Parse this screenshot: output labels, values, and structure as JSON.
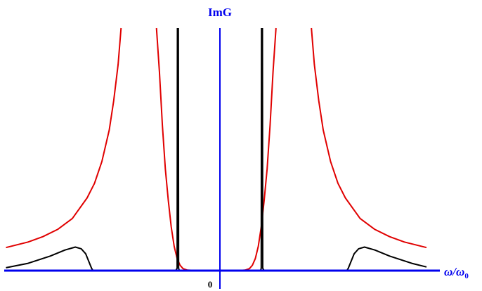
{
  "chart_data": {
    "type": "line",
    "title": "",
    "ylabel": "ImG",
    "xlabel_main": "ω/ω",
    "xlabel_sub": "0",
    "origin_label": "0",
    "xlim": [
      -1.5,
      1.45
    ],
    "ylim": [
      0,
      1.0
    ],
    "grid": false,
    "legend": "none",
    "colors": {
      "axis": "#0000ee",
      "red_curve": "#e00000",
      "black_curve": "#000000"
    },
    "series": [
      {
        "color": "#e00000",
        "points": [
          [
            -1.45,
            0.095
          ],
          [
            -1.3,
            0.118
          ],
          [
            -1.2,
            0.14
          ],
          [
            -1.1,
            0.17
          ],
          [
            -1.0,
            0.215
          ],
          [
            -0.9,
            0.3
          ],
          [
            -0.85,
            0.36
          ],
          [
            -0.8,
            0.45
          ],
          [
            -0.75,
            0.58
          ],
          [
            -0.72,
            0.7
          ],
          [
            -0.69,
            0.85
          ],
          [
            -0.67,
            1.0
          ],
          null,
          [
            -0.43,
            1.0
          ],
          [
            -0.41,
            0.82
          ],
          [
            -0.39,
            0.6
          ],
          [
            -0.37,
            0.42
          ],
          [
            -0.35,
            0.29
          ],
          [
            -0.33,
            0.18
          ],
          [
            -0.31,
            0.1
          ],
          [
            -0.29,
            0.05
          ],
          [
            -0.27,
            0.022
          ],
          [
            -0.25,
            0.008
          ],
          [
            -0.22,
            0.002
          ],
          [
            -0.15,
            0.0
          ],
          [
            0.0,
            0.0
          ],
          [
            0.12,
            0.0
          ],
          [
            0.17,
            0.002
          ],
          [
            0.2,
            0.008
          ],
          [
            0.22,
            0.022
          ],
          [
            0.24,
            0.05
          ],
          [
            0.26,
            0.1
          ],
          [
            0.28,
            0.18
          ],
          [
            0.3,
            0.29
          ],
          [
            0.32,
            0.42
          ],
          [
            0.34,
            0.6
          ],
          [
            0.36,
            0.82
          ],
          [
            0.38,
            1.0
          ],
          null,
          [
            0.62,
            1.0
          ],
          [
            0.64,
            0.85
          ],
          [
            0.67,
            0.7
          ],
          [
            0.7,
            0.58
          ],
          [
            0.75,
            0.45
          ],
          [
            0.8,
            0.36
          ],
          [
            0.85,
            0.3
          ],
          [
            0.95,
            0.215
          ],
          [
            1.05,
            0.17
          ],
          [
            1.15,
            0.14
          ],
          [
            1.25,
            0.118
          ],
          [
            1.4,
            0.095
          ]
        ]
      },
      {
        "color": "#000000",
        "points": [
          [
            -1.45,
            0.012
          ],
          [
            -1.3,
            0.03
          ],
          [
            -1.15,
            0.06
          ],
          [
            -1.05,
            0.085
          ],
          [
            -0.98,
            0.097
          ],
          [
            -0.94,
            0.09
          ],
          [
            -0.91,
            0.07
          ],
          [
            -0.89,
            0.04
          ],
          [
            -0.87,
            0.01
          ],
          [
            -0.86,
            0.0
          ],
          [
            -0.3,
            0.0
          ],
          [
            -0.29,
            0.01
          ],
          [
            -0.288,
            1.0
          ],
          null,
          [
            -0.282,
            1.0
          ],
          [
            -0.28,
            0.01
          ],
          [
            -0.275,
            0.0
          ],
          [
            0.275,
            0.0
          ],
          [
            0.28,
            0.01
          ],
          [
            0.282,
            1.0
          ],
          null,
          [
            0.288,
            1.0
          ],
          [
            0.29,
            0.01
          ],
          [
            0.3,
            0.0
          ],
          [
            0.86,
            0.0
          ],
          [
            0.87,
            0.01
          ],
          [
            0.89,
            0.04
          ],
          [
            0.91,
            0.07
          ],
          [
            0.94,
            0.09
          ],
          [
            0.98,
            0.097
          ],
          [
            1.05,
            0.085
          ],
          [
            1.15,
            0.06
          ],
          [
            1.3,
            0.03
          ],
          [
            1.4,
            0.015
          ]
        ]
      }
    ]
  }
}
